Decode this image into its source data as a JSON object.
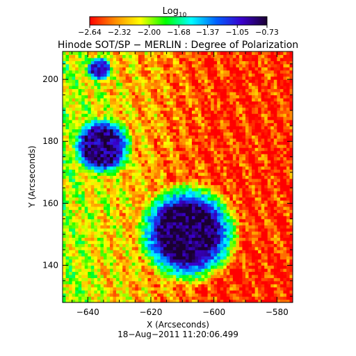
{
  "chart_data": {
    "type": "heatmap",
    "title": "Hinode SOT/SP − MERLIN : Degree of Polarization",
    "xlabel": "X (Arcseconds)",
    "ylabel": "Y (Arcseconds)",
    "footer": "18−Aug−2011 11:20:06.499",
    "xlim": [
      -648,
      -575
    ],
    "ylim": [
      128,
      209
    ],
    "x_ticks": [
      {
        "value": -640,
        "label": "−640"
      },
      {
        "value": -620,
        "label": "−620"
      },
      {
        "value": -600,
        "label": "−600"
      },
      {
        "value": -580,
        "label": "−580"
      }
    ],
    "y_ticks": [
      {
        "value": 140,
        "label": "140"
      },
      {
        "value": 160,
        "label": "160"
      },
      {
        "value": 180,
        "label": "180"
      },
      {
        "value": 200,
        "label": "200"
      }
    ],
    "colorbar": {
      "label_base": "Log",
      "label_sub": "10",
      "range": [
        -2.64,
        -0.73
      ],
      "ticks": [
        {
          "value": -2.64,
          "label": "−2.64"
        },
        {
          "value": -2.32,
          "label": "−2.32"
        },
        {
          "value": -2.0,
          "label": "−2.00"
        },
        {
          "value": -1.68,
          "label": "−1.68"
        },
        {
          "value": -1.37,
          "label": "−1.37"
        },
        {
          "value": -1.05,
          "label": "−1.05"
        },
        {
          "value": -0.73,
          "label": "−0.73"
        }
      ],
      "colors": [
        "#ff0000",
        "#ff8c00",
        "#ffff00",
        "#00ff00",
        "#00ffff",
        "#0060ff",
        "#3a00cc",
        "#1a0030"
      ]
    },
    "features": [
      {
        "name": "sunspot",
        "x": -609,
        "y": 150,
        "radius": 8.5,
        "value": -0.75
      },
      {
        "name": "pore-upper",
        "x": -636,
        "y": 178,
        "radius": 5.5,
        "value": -0.85
      },
      {
        "name": "pore-top",
        "x": -637,
        "y": 203,
        "radius": 2.5,
        "value": -1.0
      }
    ]
  }
}
